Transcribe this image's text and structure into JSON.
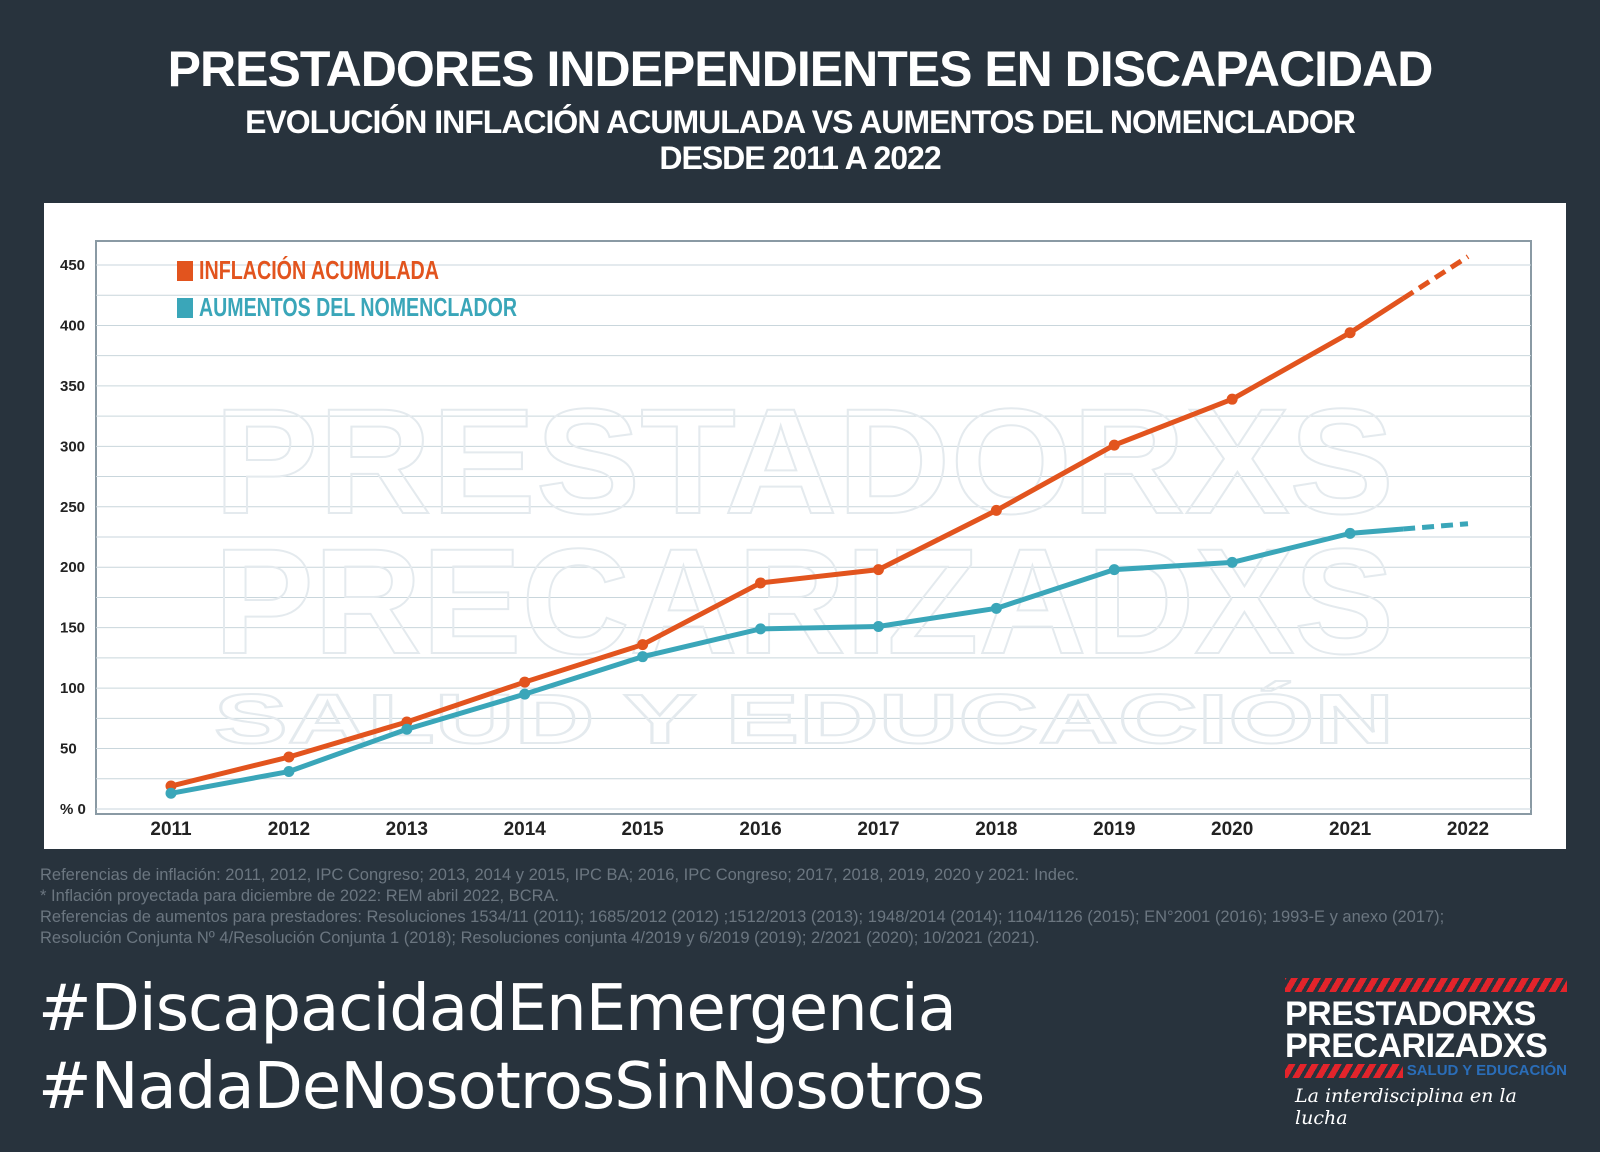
{
  "header": {
    "title": "PRESTADORES INDEPENDIENTES EN DISCAPACIDAD",
    "subtitle_line1": "EVOLUCIÓN INFLACIÓN ACUMULADA VS AUMENTOS DEL NOMENCLADOR",
    "subtitle_line2": "DESDE 2011 A 2022"
  },
  "chart_data": {
    "type": "line",
    "title": "",
    "xlabel": "",
    "ylabel": "",
    "categories": [
      "2011",
      "2012",
      "2013",
      "2014",
      "2015",
      "2016",
      "2017",
      "2018",
      "2019",
      "2020",
      "2021",
      "2022"
    ],
    "y_ticks": [
      "% 0",
      "50",
      "100",
      "150",
      "200",
      "250",
      "300",
      "350",
      "400",
      "450"
    ],
    "ylim": [
      0,
      470
    ],
    "grid": true,
    "legend_placement": "top-left",
    "projected_segment": "2021-2022 dashed",
    "series": [
      {
        "name": "INFLACIÓN ACUMULADA",
        "color": "#e2541e",
        "values": [
          19,
          43,
          72,
          105,
          136,
          187,
          198,
          247,
          301,
          339,
          394,
          457
        ]
      },
      {
        "name": "AUMENTOS DEL NOMENCLADOR",
        "color": "#3aa6b9",
        "values": [
          13,
          31,
          66,
          95,
          126,
          149,
          151,
          166,
          198,
          204,
          228,
          236
        ]
      }
    ]
  },
  "watermark": {
    "line1": "PRESTADORXS",
    "line2": "PRECARIZADXS",
    "line3": "SALUD Y EDUCACIÓN"
  },
  "references": [
    "Referencias de inflación: 2011, 2012,  IPC Congreso; 2013, 2014 y 2015, IPC BA; 2016, IPC Congreso; 2017, 2018, 2019, 2020 y 2021: Indec.",
    "* Inflación proyectada para diciembre de 2022: REM abril 2022, BCRA.",
    "Referencias de aumentos para prestadores: Resoluciones 1534/11 (2011); 1685/2012 (2012) ;1512/2013 (2013); 1948/2014 (2014); 1104/1126 (2015); EN°2001 (2016); 1993-E y anexo (2017);",
    "Resolución Conjunta Nº 4/Resolución Conjunta 1 (2018); Resoluciones conjunta 4/2019 y 6/2019 (2019); 2/2021 (2020); 10/2021 (2021)."
  ],
  "hashtags": [
    "#DiscapacidadEnEmergencia",
    "#NadaDeNosotrosSinNosotros"
  ],
  "logo": {
    "line1": "PRESTADORXS",
    "line2": "PRECARIZADXS",
    "tag": "SALUD Y EDUCACIÓN",
    "slogan": "La interdisciplina en la lucha"
  }
}
